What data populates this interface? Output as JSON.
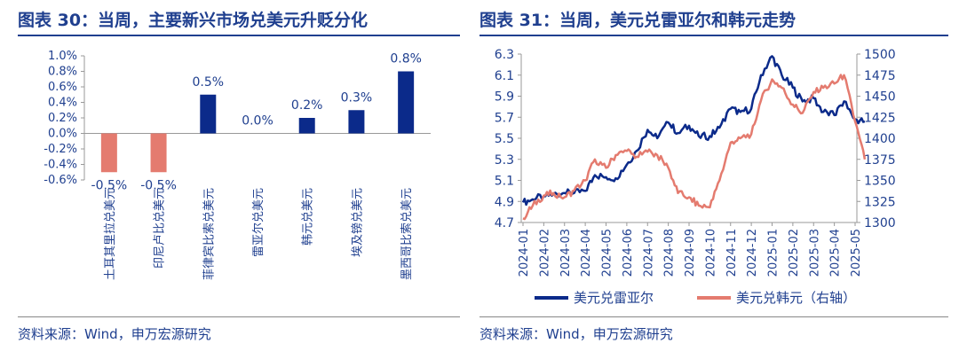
{
  "left_panel": {
    "title": "图表 30：当周，主要新兴市场兑美元升贬分化",
    "source": "资料来源：Wind，申万宏源研究"
  },
  "right_panel": {
    "title": "图表 31：当周，美元兑雷亚尔和韩元走势",
    "source": "资料来源：Wind，申万宏源研究"
  },
  "colors": {
    "blue": "#0b2a8a",
    "salmon": "#e47b6f",
    "title": "#1f3f8f"
  },
  "chart_data": [
    {
      "type": "bar",
      "title": "",
      "categories": [
        "土耳其里拉兑美元",
        "印尼卢比兑美元",
        "菲律宾比索兑美元",
        "雷亚尔兑美元",
        "韩元兑美元",
        "埃及镑兑美元",
        "墨西哥比索兑美元"
      ],
      "values": [
        -0.5,
        -0.5,
        0.5,
        0.0,
        0.2,
        0.3,
        0.8
      ],
      "labels": [
        "-0.5%",
        "-0.5%",
        "0.5%",
        "0.0%",
        "0.2%",
        "0.3%",
        "0.8%"
      ],
      "y_ticks": [
        "1.0%",
        "0.8%",
        "0.6%",
        "0.4%",
        "0.2%",
        "0.0%",
        "-0.2%",
        "-0.4%",
        "-0.6%"
      ],
      "ylim": [
        -0.6,
        1.0
      ],
      "grid": false,
      "positive_color": "#0b2a8a",
      "negative_color": "#e47b6f"
    },
    {
      "type": "line",
      "title": "",
      "x_ticks": [
        "2024-01",
        "2024-02",
        "2024-03",
        "2024-04",
        "2024-05",
        "2024-06",
        "2024-07",
        "2024-08",
        "2024-09",
        "2024-10",
        "2024-11",
        "2024-12",
        "2025-01",
        "2025-02",
        "2025-03",
        "2025-04",
        "2025-05"
      ],
      "y_left_ticks": [
        "6.3",
        "6.1",
        "5.9",
        "5.7",
        "5.5",
        "5.3",
        "5.1",
        "4.9",
        "4.7"
      ],
      "y_left_lim": [
        4.7,
        6.3
      ],
      "y_right_ticks": [
        "1500",
        "1475",
        "1450",
        "1425",
        "1400",
        "1375",
        "1350",
        "1325",
        "1300"
      ],
      "y_right_lim": [
        1300,
        1500
      ],
      "grid": false,
      "legend_position": "bottom",
      "series": [
        {
          "name": "美元兑雷亚尔",
          "axis": "left",
          "color": "#0b2a8a",
          "x": [
            "2024-01",
            "2024-01-15",
            "2024-02",
            "2024-02-15",
            "2024-03",
            "2024-03-15",
            "2024-04",
            "2024-04-15",
            "2024-05",
            "2024-05-15",
            "2024-06",
            "2024-06-15",
            "2024-07",
            "2024-07-15",
            "2024-08",
            "2024-08-15",
            "2024-09",
            "2024-09-15",
            "2024-10",
            "2024-10-15",
            "2024-11",
            "2024-11-15",
            "2024-12",
            "2024-12-15",
            "2025-01",
            "2025-01-15",
            "2025-02",
            "2025-02-15",
            "2025-03",
            "2025-03-15",
            "2025-04",
            "2025-04-15",
            "2025-05",
            "2025-05-15"
          ],
          "values": [
            4.89,
            4.92,
            4.95,
            4.97,
            4.98,
            4.98,
            5.0,
            5.15,
            5.13,
            5.12,
            5.25,
            5.38,
            5.58,
            5.5,
            5.65,
            5.55,
            5.62,
            5.52,
            5.52,
            5.6,
            5.78,
            5.75,
            5.78,
            6.1,
            6.28,
            6.1,
            5.98,
            5.85,
            5.88,
            5.75,
            5.72,
            5.85,
            5.68,
            5.66
          ]
        },
        {
          "name": "美元兑韩元（右轴）",
          "axis": "right",
          "color": "#e47b6f",
          "x": [
            "2024-01",
            "2024-01-15",
            "2024-02",
            "2024-02-15",
            "2024-03",
            "2024-03-15",
            "2024-04",
            "2024-04-15",
            "2024-05",
            "2024-05-15",
            "2024-06",
            "2024-06-15",
            "2024-07",
            "2024-07-15",
            "2024-08",
            "2024-08-15",
            "2024-09",
            "2024-09-15",
            "2024-10",
            "2024-10-15",
            "2024-11",
            "2024-11-15",
            "2024-12",
            "2024-12-15",
            "2025-01",
            "2025-01-15",
            "2025-02",
            "2025-02-15",
            "2025-03",
            "2025-03-15",
            "2025-04",
            "2025-04-15",
            "2025-05",
            "2025-05-15"
          ],
          "values": [
            1305,
            1320,
            1332,
            1335,
            1330,
            1338,
            1350,
            1375,
            1365,
            1380,
            1385,
            1378,
            1384,
            1380,
            1365,
            1335,
            1330,
            1320,
            1318,
            1350,
            1395,
            1400,
            1405,
            1445,
            1470,
            1460,
            1440,
            1430,
            1455,
            1460,
            1465,
            1475,
            1420,
            1375
          ]
        }
      ]
    }
  ]
}
